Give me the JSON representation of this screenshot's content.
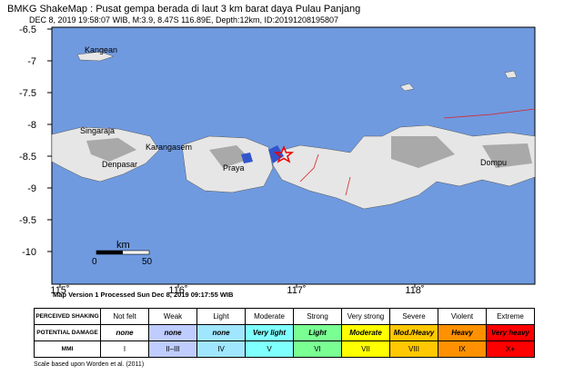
{
  "header": {
    "title": "BMKG ShakeMap : Pusat gempa berada di laut 3 km barat daya Pulau Panjang",
    "subtitle": "DEC 8, 2019 19:58:07 WIB, M:3.9, 8.47S 116.89E, Depth:12km, ID:20191208195807"
  },
  "map": {
    "yticks": [
      -6.5,
      -7,
      -7.5,
      -8,
      -8.5,
      -9,
      -9.5,
      -10
    ],
    "xticks": [
      {
        "value": 115,
        "label": "115˚"
      },
      {
        "value": 116,
        "label": "116˚"
      },
      {
        "value": 117,
        "label": "117˚"
      },
      {
        "value": 118,
        "label": "118˚"
      }
    ],
    "places": [
      "Kangean",
      "Singaraja",
      "Karangasem",
      "Denpasar",
      "Praya",
      "Dompu"
    ],
    "scale": {
      "unit": "km",
      "labels": [
        "0",
        "50"
      ]
    },
    "version": "Map Version 1 Processed Sun Dec  8, 2019 09:17:55 WIB"
  },
  "legend": {
    "row_headers": [
      "PERCEIVED SHAKING",
      "POTENTIAL DAMAGE",
      "MMI"
    ],
    "shaking": [
      "Not felt",
      "Weak",
      "Light",
      "Moderate",
      "Strong",
      "Very strong",
      "Severe",
      "Violent",
      "Extreme"
    ],
    "damage": [
      "none",
      "none",
      "none",
      "Very light",
      "Light",
      "Moderate",
      "Mod./Heavy",
      "Heavy",
      "Very heavy"
    ],
    "mmi": [
      "I",
      "II–III",
      "IV",
      "V",
      "VI",
      "VII",
      "VIII",
      "IX",
      "X+"
    ]
  },
  "footer": "Scale based upon Worden et al. (2011)"
}
